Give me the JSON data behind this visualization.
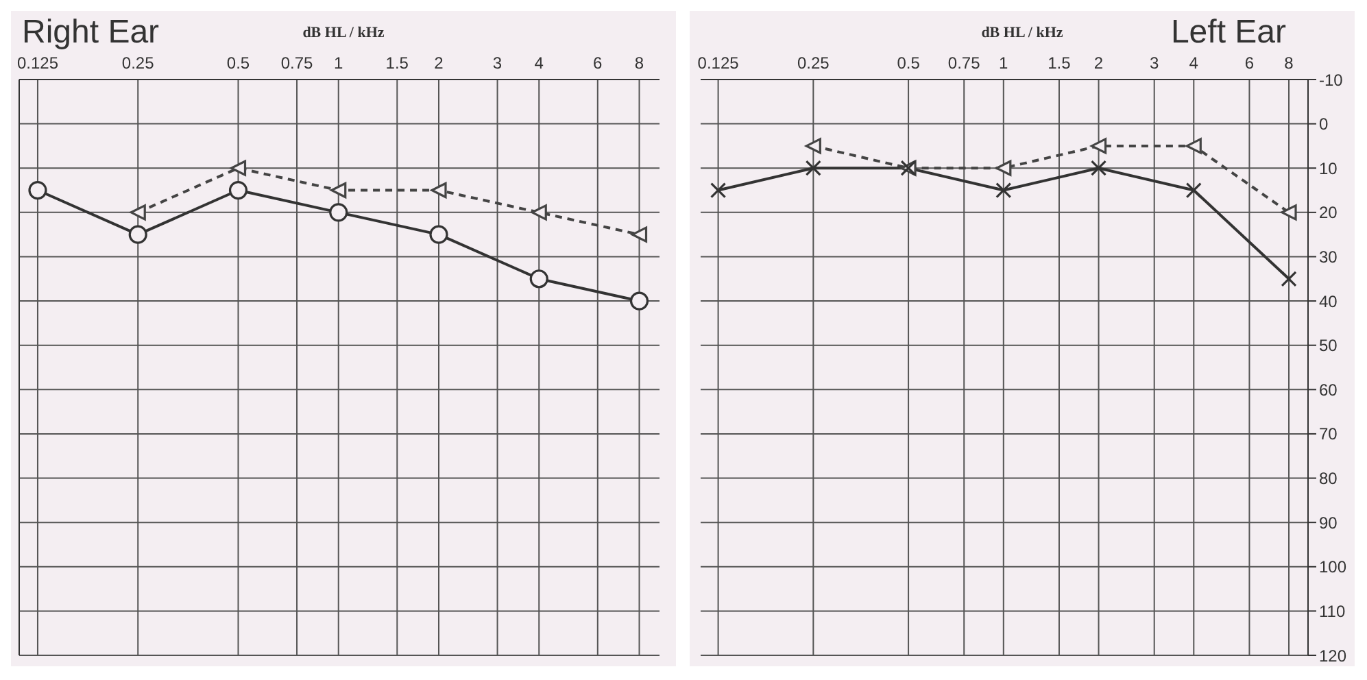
{
  "chart_data": [
    {
      "type": "line",
      "title": "Right Ear",
      "xlabel": "dB HL / kHz",
      "x": [
        0.125,
        0.25,
        0.5,
        1,
        2,
        4,
        8
      ],
      "log": "x",
      "xlim": [
        0.11,
        9.2
      ],
      "xticks": [
        0.125,
        0.25,
        0.5,
        0.75,
        1,
        1.5,
        2,
        3,
        4,
        6,
        8
      ],
      "ylim": [
        120,
        -10
      ],
      "yticks": [
        -10,
        0,
        10,
        20,
        30,
        40,
        50,
        60,
        70,
        80,
        90,
        100,
        110,
        120
      ],
      "tick_labels": "x",
      "grid": true,
      "legend": false,
      "series": [
        {
          "color": "#333333",
          "values": [
            15,
            25,
            15,
            20,
            25,
            35,
            40
          ],
          "marker": "circle",
          "line_style": "solid"
        },
        {
          "color": "#444444",
          "x": [
            0.25,
            0.5,
            1,
            2,
            4,
            8
          ],
          "values": [
            20,
            10,
            15,
            15,
            20,
            25
          ],
          "marker": "triangle",
          "line_style": "dashed"
        }
      ]
    },
    {
      "type": "line",
      "title": "Left Ear",
      "xlabel": "dB HL / kHz",
      "x": [
        0.125,
        0.25,
        0.5,
        1,
        2,
        4,
        8
      ],
      "log": "x",
      "xlim": [
        0.11,
        9.2
      ],
      "xticks": [
        0.125,
        0.25,
        0.5,
        0.75,
        1,
        1.5,
        2,
        3,
        4,
        6,
        8
      ],
      "ylim": [
        120,
        -10
      ],
      "yticks": [
        -10,
        0,
        10,
        20,
        30,
        40,
        50,
        60,
        70,
        80,
        90,
        100,
        110,
        120
      ],
      "grid": true,
      "legend": false,
      "series": [
        {
          "color": "#333333",
          "values": [
            15,
            10,
            10,
            15,
            10,
            15,
            35
          ],
          "marker": "cross",
          "line_style": "solid"
        },
        {
          "color": "#444444",
          "x": [
            0.25,
            0.5,
            1,
            2,
            4,
            8
          ],
          "values": [
            5,
            10,
            10,
            5,
            5,
            20
          ],
          "marker": "triangle",
          "line_style": "dashed"
        }
      ]
    }
  ]
}
